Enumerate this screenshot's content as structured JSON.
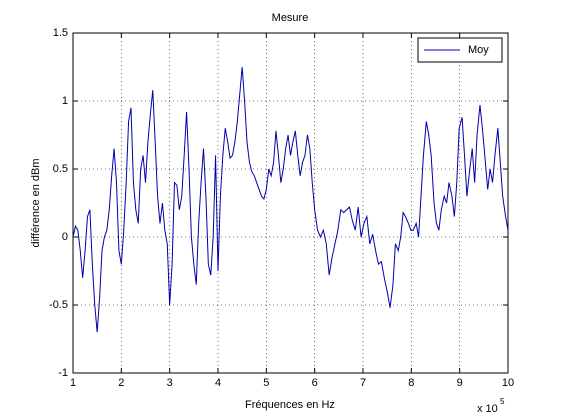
{
  "chart_data": {
    "type": "line",
    "title": "Mesure",
    "xlabel": "Fréquences en Hz",
    "ylabel": "différence en dBm",
    "x_exponent_base": "x 10",
    "x_exponent": "5",
    "x": [
      1.0,
      1.05,
      1.1,
      1.15,
      1.2,
      1.25,
      1.3,
      1.35,
      1.4,
      1.45,
      1.5,
      1.55,
      1.6,
      1.65,
      1.7,
      1.75,
      1.8,
      1.85,
      1.9,
      1.95,
      2.0,
      2.05,
      2.1,
      2.15,
      2.2,
      2.25,
      2.3,
      2.35,
      2.4,
      2.45,
      2.5,
      2.55,
      2.6,
      2.65,
      2.7,
      2.75,
      2.8,
      2.85,
      2.9,
      2.95,
      3.0,
      3.05,
      3.1,
      3.15,
      3.2,
      3.25,
      3.3,
      3.35,
      3.4,
      3.45,
      3.5,
      3.55,
      3.6,
      3.65,
      3.7,
      3.75,
      3.8,
      3.85,
      3.9,
      3.95,
      4.0,
      4.05,
      4.1,
      4.15,
      4.2,
      4.25,
      4.3,
      4.35,
      4.4,
      4.45,
      4.5,
      4.55,
      4.6,
      4.65,
      4.7,
      4.75,
      4.8,
      4.85,
      4.9,
      4.95,
      5.0,
      5.05,
      5.1,
      5.15,
      5.2,
      5.25,
      5.3,
      5.35,
      5.4,
      5.45,
      5.5,
      5.55,
      5.6,
      5.65,
      5.7,
      5.75,
      5.8,
      5.85,
      5.9,
      5.95,
      6.0,
      6.06,
      6.12,
      6.18,
      6.24,
      6.3,
      6.36,
      6.42,
      6.48,
      6.54,
      6.6,
      6.66,
      6.72,
      6.78,
      6.84,
      6.9,
      6.96,
      7.02,
      7.08,
      7.14,
      7.2,
      7.26,
      7.32,
      7.38,
      7.44,
      7.5,
      7.56,
      7.62,
      7.67,
      7.73,
      7.78,
      7.83,
      7.88,
      7.94,
      7.99,
      8.04,
      8.1,
      8.15,
      8.2,
      8.25,
      8.31,
      8.36,
      8.41,
      8.47,
      8.52,
      8.57,
      8.62,
      8.68,
      8.73,
      8.78,
      8.84,
      8.89,
      8.94,
      8.99,
      9.05,
      9.1,
      9.15,
      9.21,
      9.26,
      9.31,
      9.36,
      9.42,
      9.47,
      9.52,
      9.58,
      9.63,
      9.68,
      9.73,
      9.79,
      9.84,
      9.89,
      9.95,
      10.0
    ],
    "series": [
      {
        "name": "Moy",
        "color": "#0000aa",
        "values": [
          0.0,
          0.08,
          0.05,
          -0.1,
          -0.3,
          -0.1,
          0.15,
          0.2,
          -0.2,
          -0.5,
          -0.7,
          -0.45,
          -0.1,
          0.0,
          0.05,
          0.2,
          0.45,
          0.65,
          0.4,
          -0.1,
          -0.2,
          0.05,
          0.4,
          0.85,
          0.95,
          0.4,
          0.2,
          0.1,
          0.5,
          0.6,
          0.4,
          0.7,
          0.9,
          1.08,
          0.7,
          0.3,
          0.1,
          0.25,
          0.05,
          -0.05,
          -0.5,
          -0.2,
          0.4,
          0.38,
          0.2,
          0.3,
          0.6,
          0.92,
          0.5,
          0.0,
          -0.2,
          -0.35,
          0.1,
          0.4,
          0.65,
          0.3,
          -0.2,
          -0.28,
          0.0,
          0.6,
          -0.25,
          0.3,
          0.6,
          0.8,
          0.7,
          0.58,
          0.6,
          0.7,
          0.85,
          1.05,
          1.25,
          1.0,
          0.7,
          0.55,
          0.48,
          0.45,
          0.4,
          0.35,
          0.3,
          0.28,
          0.35,
          0.5,
          0.45,
          0.55,
          0.78,
          0.6,
          0.4,
          0.5,
          0.65,
          0.75,
          0.6,
          0.7,
          0.78,
          0.6,
          0.45,
          0.55,
          0.6,
          0.75,
          0.65,
          0.4,
          0.2,
          0.05,
          0.0,
          0.05,
          -0.05,
          -0.28,
          -0.15,
          -0.05,
          0.05,
          0.2,
          0.18,
          0.2,
          0.22,
          0.12,
          0.05,
          0.22,
          0.0,
          0.1,
          0.15,
          -0.05,
          0.02,
          -0.1,
          -0.2,
          -0.18,
          -0.3,
          -0.4,
          -0.52,
          -0.35,
          -0.05,
          -0.1,
          0.0,
          0.18,
          0.15,
          0.1,
          0.05,
          0.05,
          0.1,
          0.0,
          0.3,
          0.6,
          0.85,
          0.75,
          0.6,
          0.25,
          0.1,
          0.05,
          0.2,
          0.3,
          0.25,
          0.4,
          0.3,
          0.15,
          0.4,
          0.8,
          0.88,
          0.6,
          0.3,
          0.5,
          0.65,
          0.4,
          0.75,
          0.97,
          0.8,
          0.6,
          0.35,
          0.5,
          0.4,
          0.6,
          0.8,
          0.55,
          0.3,
          0.15,
          0.05
        ]
      }
    ],
    "xlim": [
      1,
      10
    ],
    "ylim": [
      -1,
      1.5
    ],
    "xticks": [
      1,
      2,
      3,
      4,
      5,
      6,
      7,
      8,
      9,
      10
    ],
    "yticks": [
      -1,
      -0.5,
      0,
      0.5,
      1,
      1.5
    ],
    "grid": true,
    "legend": "upper right"
  }
}
